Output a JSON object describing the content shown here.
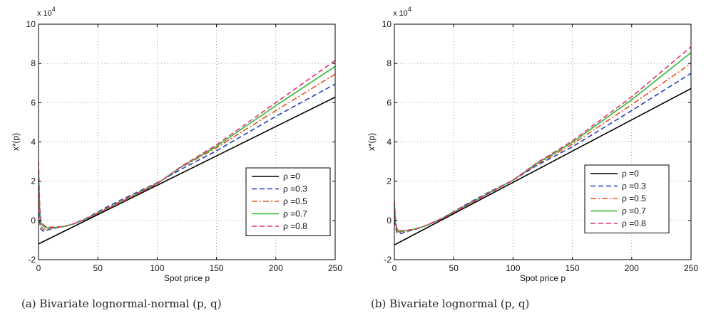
{
  "chart_data": [
    {
      "type": "line",
      "caption": "(a)  Bivariate lognormal-normal (p, q)",
      "xlabel": "Spot price p",
      "ylabel": "x*(p)",
      "y_multiplier": "x 10",
      "y_multiplier_exp": "4",
      "xlim": [
        0,
        250
      ],
      "ylim": [
        -2,
        10
      ],
      "xticks": [
        0,
        50,
        100,
        150,
        200,
        250
      ],
      "yticks": [
        -2,
        0,
        2,
        4,
        6,
        8,
        10
      ],
      "grid": true,
      "legend_position": "lower-right",
      "series": [
        {
          "name": "ρ =0",
          "color": "#000000",
          "dash": "solid",
          "x": [
            0,
            250
          ],
          "y": [
            -1.2,
            6.28
          ]
        },
        {
          "name": "ρ =0.3",
          "color": "#1f3fbf",
          "dash": "dashed",
          "x": [
            0,
            1,
            2,
            4,
            6,
            8,
            10,
            15,
            20,
            25,
            30,
            35,
            40,
            60,
            80,
            100,
            120,
            150,
            200,
            250
          ],
          "y": [
            1.2,
            -0.1,
            -0.45,
            -0.55,
            -0.53,
            -0.48,
            -0.44,
            -0.38,
            -0.33,
            -0.26,
            -0.16,
            -0.03,
            0.1,
            0.76,
            1.35,
            1.92,
            2.6,
            3.55,
            5.3,
            6.95
          ]
        },
        {
          "name": "ρ =0.5",
          "color": "#e8531f",
          "dash": "dashdot",
          "x": [
            0,
            1,
            2,
            4,
            6,
            8,
            10,
            15,
            20,
            25,
            30,
            35,
            40,
            60,
            80,
            100,
            120,
            150,
            200,
            250
          ],
          "y": [
            2.0,
            0.2,
            -0.3,
            -0.45,
            -0.46,
            -0.44,
            -0.41,
            -0.37,
            -0.33,
            -0.26,
            -0.17,
            -0.04,
            0.09,
            0.7,
            1.3,
            1.9,
            2.7,
            3.7,
            5.6,
            7.45
          ]
        },
        {
          "name": "ρ =0.7",
          "color": "#2fb82f",
          "dash": "solid",
          "x": [
            0,
            1,
            2,
            4,
            6,
            8,
            10,
            15,
            20,
            25,
            30,
            35,
            40,
            60,
            80,
            100,
            120,
            150,
            200,
            250
          ],
          "y": [
            2.6,
            0.5,
            -0.1,
            -0.3,
            -0.36,
            -0.37,
            -0.37,
            -0.35,
            -0.32,
            -0.26,
            -0.17,
            -0.05,
            0.08,
            0.66,
            1.26,
            1.88,
            2.72,
            3.78,
            5.85,
            7.85
          ]
        },
        {
          "name": "ρ =0.8",
          "color": "#e8307a",
          "dash": "dashed",
          "x": [
            0,
            1,
            2,
            4,
            6,
            8,
            10,
            15,
            20,
            25,
            30,
            35,
            40,
            60,
            80,
            100,
            120,
            150,
            200,
            250
          ],
          "y": [
            3.0,
            0.7,
            0.0,
            -0.22,
            -0.3,
            -0.33,
            -0.34,
            -0.34,
            -0.31,
            -0.25,
            -0.17,
            -0.05,
            0.08,
            0.64,
            1.24,
            1.87,
            2.74,
            3.85,
            6.0,
            8.15
          ]
        }
      ]
    },
    {
      "type": "line",
      "caption": "(b)  Bivariate lognormal (p, q)",
      "xlabel": "Spot price p",
      "ylabel": "x*(p)",
      "y_multiplier": "x 10",
      "y_multiplier_exp": "4",
      "xlim": [
        0,
        250
      ],
      "ylim": [
        -2,
        10
      ],
      "xticks": [
        0,
        50,
        100,
        150,
        200,
        250
      ],
      "yticks": [
        -2,
        0,
        2,
        4,
        6,
        8,
        10
      ],
      "grid": true,
      "legend_position": "lower-right",
      "series": [
        {
          "name": "ρ =0",
          "color": "#000000",
          "dash": "solid",
          "x": [
            0,
            250
          ],
          "y": [
            -1.25,
            6.72
          ]
        },
        {
          "name": "ρ =0.3",
          "color": "#1f3fbf",
          "dash": "dashed",
          "x": [
            0,
            1,
            2,
            4,
            6,
            8,
            10,
            15,
            20,
            25,
            30,
            35,
            40,
            60,
            80,
            100,
            120,
            150,
            200,
            250
          ],
          "y": [
            0.4,
            -0.35,
            -0.6,
            -0.68,
            -0.66,
            -0.62,
            -0.57,
            -0.5,
            -0.41,
            -0.3,
            -0.17,
            -0.03,
            0.1,
            0.8,
            1.45,
            2.05,
            2.8,
            3.75,
            5.6,
            7.5
          ]
        },
        {
          "name": "ρ =0.5",
          "color": "#e8531f",
          "dash": "dashdot",
          "x": [
            0,
            1,
            2,
            4,
            6,
            8,
            10,
            15,
            20,
            25,
            30,
            35,
            40,
            60,
            80,
            100,
            120,
            150,
            200,
            250
          ],
          "y": [
            0.7,
            -0.2,
            -0.5,
            -0.6,
            -0.6,
            -0.58,
            -0.54,
            -0.48,
            -0.4,
            -0.3,
            -0.17,
            -0.04,
            0.1,
            0.77,
            1.42,
            2.05,
            2.85,
            3.88,
            5.9,
            8.0
          ]
        },
        {
          "name": "ρ =0.7",
          "color": "#2fb82f",
          "dash": "solid",
          "x": [
            0,
            1,
            2,
            4,
            6,
            8,
            10,
            15,
            20,
            25,
            30,
            35,
            40,
            60,
            80,
            100,
            120,
            150,
            200,
            250
          ],
          "y": [
            0.9,
            -0.1,
            -0.42,
            -0.54,
            -0.56,
            -0.55,
            -0.52,
            -0.47,
            -0.39,
            -0.3,
            -0.18,
            -0.05,
            0.09,
            0.74,
            1.4,
            2.05,
            2.9,
            3.98,
            6.15,
            8.55
          ]
        },
        {
          "name": "ρ =0.8",
          "color": "#e8307a",
          "dash": "dashed",
          "x": [
            0,
            1,
            2,
            4,
            6,
            8,
            10,
            15,
            20,
            25,
            30,
            35,
            40,
            60,
            80,
            100,
            120,
            150,
            200,
            250
          ],
          "y": [
            1.0,
            -0.05,
            -0.38,
            -0.5,
            -0.53,
            -0.52,
            -0.5,
            -0.46,
            -0.39,
            -0.3,
            -0.18,
            -0.05,
            0.09,
            0.72,
            1.38,
            2.05,
            2.93,
            4.05,
            6.3,
            8.85
          ]
        }
      ]
    }
  ]
}
